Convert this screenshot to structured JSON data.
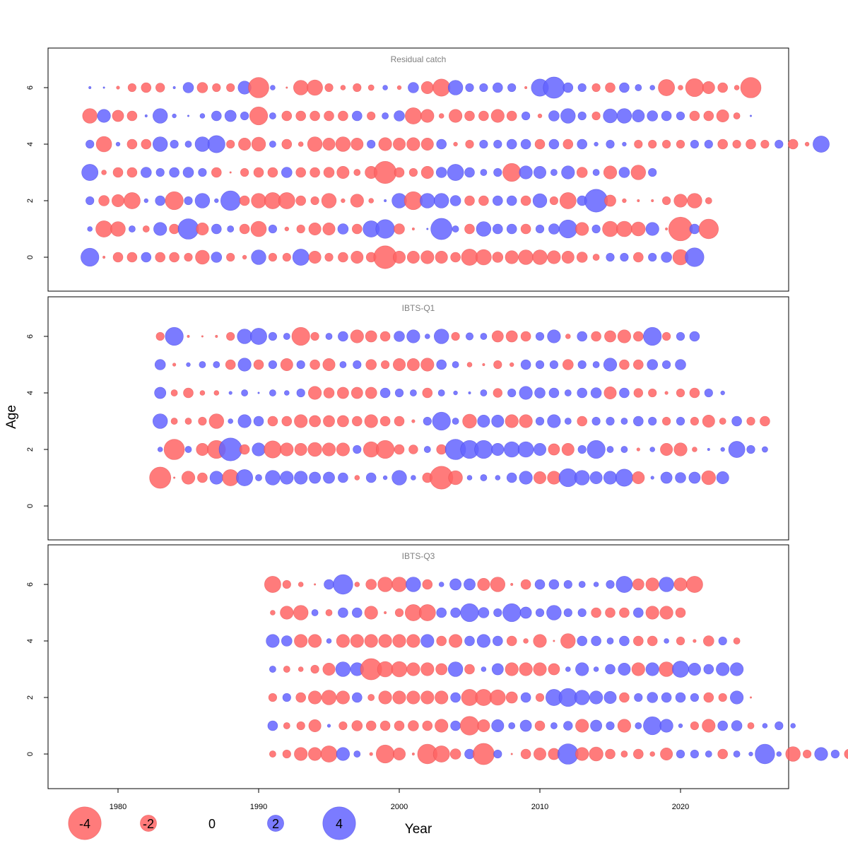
{
  "chart_data": {
    "type": "scatter",
    "subtype": "bubble",
    "xlabel": "Year",
    "ylabel": "Age",
    "x_ticks": [
      1980,
      1990,
      2000,
      2010,
      2020
    ],
    "y_ticks": [
      0,
      2,
      4,
      6
    ],
    "xlim": [
      1975,
      2028
    ],
    "ylim": [
      -1.3,
      7.3
    ],
    "colors": {
      "positive": "#6464ff",
      "negative": "#ff6464",
      "positive_edge": "#3c3cdc",
      "negative_edge": "#e04848"
    },
    "legend": {
      "values": [
        -4,
        -2,
        0,
        2,
        4
      ],
      "labels": [
        "-4",
        "-2",
        "0",
        "2",
        "4"
      ],
      "placement": "bottom"
    },
    "panels": [
      {
        "title": "Residual catch",
        "start_year": 1978,
        "ages": [
          0,
          1,
          2,
          3,
          4,
          5,
          6
        ],
        "residuals": {
          "0": [
            2.2,
            -0.3,
            -1.2,
            -1.2,
            1.2,
            -1.2,
            -1.2,
            -1.0,
            -1.7,
            1.3,
            -1.0,
            -0.5,
            1.8,
            -1.0,
            -1.0,
            2.0,
            -1.5,
            -1.0,
            -1.2,
            -1.5,
            -1.2,
            -2.8,
            -1.5,
            -1.5,
            -1.6,
            -1.5,
            -1.2,
            -2.0,
            -1.9,
            -1.3,
            -1.6,
            -1.8,
            -1.8,
            -1.6,
            -1.5,
            -1.3,
            -0.8,
            1.0,
            1.0,
            -1.2,
            1.0,
            1.3,
            -1.9,
            2.3
          ],
          "1": [
            0.6,
            -2.0,
            -1.8,
            0.8,
            -0.8,
            1.6,
            -1.2,
            2.5,
            -1.5,
            1.2,
            0.8,
            -1.2,
            -1.9,
            1.0,
            -0.5,
            -1.0,
            -1.5,
            -1.5,
            1.3,
            -1.2,
            2.0,
            2.3,
            -1.3,
            -0.3,
            0.2,
            2.6,
            0.8,
            -1.2,
            1.8,
            1.2,
            1.2,
            -1.2,
            1.0,
            1.3,
            2.2,
            -1.6,
            1.0,
            -1.9,
            -1.9,
            -1.7,
            1.6,
            -0.3,
            -2.9,
            1.2,
            -2.4
          ],
          "2": [
            1.0,
            -1.3,
            -1.5,
            -2.0,
            0.5,
            1.2,
            -2.2,
            1.0,
            1.8,
            0.5,
            2.4,
            -1.2,
            -1.8,
            -2.0,
            -2.0,
            -1.2,
            -1.0,
            -1.8,
            -0.5,
            -1.6,
            -0.6,
            0.3,
            1.8,
            -2.2,
            1.8,
            1.8,
            1.3,
            -1.2,
            -1.2,
            1.2,
            1.2,
            -1.2,
            1.7,
            -1.0,
            -2.0,
            1.2,
            2.8,
            -1.4,
            -0.5,
            -0.3,
            -0.3,
            -1.0,
            -1.6,
            -1.8,
            -0.8
          ],
          "3": [
            2.0,
            -0.6,
            -1.2,
            -1.2,
            1.3,
            1.0,
            1.2,
            1.3,
            1.0,
            -1.2,
            -0.2,
            -1.0,
            -1.2,
            -1.2,
            1.3,
            -1.2,
            -1.2,
            -1.3,
            -1.5,
            -0.8,
            -1.5,
            -2.7,
            -1.2,
            -1.0,
            -1.5,
            1.3,
            2.0,
            1.2,
            0.8,
            1.0,
            -2.2,
            1.6,
            1.5,
            0.8,
            1.6,
            -1.3,
            0.8,
            -1.6,
            1.3,
            -1.8,
            1.0
          ],
          "4": [
            1.0,
            -1.9,
            0.5,
            -1.2,
            -1.2,
            1.8,
            1.0,
            0.8,
            1.8,
            2.1,
            -1.0,
            -1.5,
            -1.7,
            0.8,
            -1.2,
            -0.6,
            -1.8,
            -1.5,
            -1.8,
            -1.5,
            1.0,
            -1.6,
            -1.5,
            -1.6,
            -1.5,
            1.2,
            -0.5,
            -1.0,
            1.0,
            1.0,
            1.2,
            1.2,
            -1.2,
            1.2,
            -1.2,
            1.2,
            0.5,
            1.0,
            0.5,
            -1.0,
            -1.0,
            -1.0,
            -1.0,
            1.0,
            1.0,
            -1.2,
            -1.0,
            -1.2,
            -1.0,
            1.0,
            -1.2,
            -0.5,
            2.0
          ],
          "5": [
            -1.8,
            1.6,
            -1.4,
            -1.2,
            0.3,
            1.8,
            0.5,
            0.2,
            0.6,
            1.2,
            1.4,
            1.0,
            -2.2,
            0.8,
            -1.2,
            -1.2,
            -1.2,
            -1.2,
            -1.2,
            1.2,
            -1.0,
            0.8,
            1.3,
            -2.0,
            -1.6,
            -0.6,
            -1.6,
            -1.2,
            -1.2,
            -1.6,
            -1.2,
            1.0,
            -0.5,
            1.3,
            1.8,
            1.0,
            -1.0,
            1.7,
            1.8,
            1.5,
            1.3,
            1.2,
            1.0,
            -1.2,
            -1.2,
            -1.5,
            -0.8,
            0.2
          ],
          "6": [
            0.3,
            0.2,
            -0.4,
            -1.0,
            -1.2,
            -1.1,
            0.3,
            1.3,
            -1.3,
            -1.0,
            -1.0,
            1.6,
            -2.5,
            0.6,
            -0.2,
            -1.8,
            -1.9,
            -1.0,
            -0.6,
            -1.0,
            -0.7,
            0.6,
            -0.5,
            1.3,
            -1.5,
            -2.1,
            1.8,
            1.0,
            1.0,
            1.2,
            1.0,
            -0.3,
            2.1,
            2.6,
            1.2,
            1.0,
            -1.0,
            -1.2,
            1.2,
            0.8,
            0.6,
            -2.0,
            -0.6,
            -2.2,
            -1.5,
            -1.2,
            -0.6,
            -2.5
          ]
        }
      },
      {
        "title": "IBTS-Q1",
        "start_year": 1983,
        "ages": [
          1,
          2,
          3,
          4,
          5,
          6
        ],
        "residuals": {
          "1": [
            -2.6,
            -0.2,
            -1.6,
            -1.2,
            1.6,
            -2.0,
            2.0,
            0.8,
            1.8,
            1.6,
            1.6,
            1.4,
            1.4,
            1.2,
            -0.6,
            1.2,
            0.5,
            1.8,
            0.6,
            -1.2,
            -2.8,
            -1.7,
            0.6,
            0.8,
            0.6,
            1.2,
            1.6,
            -1.5,
            -1.6,
            2.2,
            1.8,
            1.5,
            1.6,
            2.1,
            -1.5,
            0.4,
            1.4,
            1.3,
            1.4,
            -1.7,
            1.5
          ],
          "2": [
            0.6,
            -2.5,
            0.8,
            -1.5,
            -2.2,
            2.8,
            -1.2,
            1.6,
            -2.1,
            -1.6,
            -1.5,
            -1.7,
            -1.6,
            -1.6,
            1.0,
            -1.9,
            -2.2,
            -1.2,
            -1.1,
            0.8,
            -1.2,
            2.5,
            2.2,
            2.2,
            1.5,
            1.9,
            1.9,
            1.5,
            -1.4,
            -1.5,
            1.0,
            2.2,
            0.8,
            0.8,
            -0.4,
            0.6,
            -1.5,
            -1.6,
            -0.6,
            0.3,
            0.5,
            2.0,
            1.0,
            0.7
          ],
          "3": [
            1.8,
            -0.8,
            -0.8,
            -1.0,
            -1.8,
            0.6,
            1.6,
            1.2,
            -1.2,
            -1.2,
            -1.6,
            -1.4,
            -1.4,
            -1.4,
            -1.2,
            -1.6,
            -1.2,
            -1.2,
            -0.4,
            1.0,
            2.2,
            0.8,
            -1.7,
            1.5,
            1.5,
            -1.6,
            -1.6,
            1.0,
            1.6,
            0.8,
            -1.2,
            1.0,
            1.0,
            0.8,
            1.2,
            1.0,
            -1.0,
            1.0,
            -1.0,
            -1.5,
            -0.8,
            1.2,
            -1.0,
            -1.2
          ],
          "4": [
            1.4,
            -0.8,
            -1.2,
            -0.6,
            -0.6,
            0.4,
            0.8,
            0.2,
            0.8,
            0.6,
            1.0,
            -1.6,
            -1.3,
            -1.4,
            -1.4,
            -1.4,
            1.2,
            1.0,
            0.8,
            -1.2,
            0.8,
            0.5,
            0.3,
            0.8,
            -1.1,
            1.0,
            1.6,
            1.3,
            1.2,
            0.8,
            1.2,
            1.3,
            -1.5,
            1.2,
            -1.1,
            -1.0,
            -0.4,
            -1.0,
            -1.2,
            1.0,
            0.5
          ],
          "5": [
            1.3,
            -0.4,
            0.5,
            0.8,
            0.8,
            -1.2,
            1.6,
            -1.2,
            1.0,
            -1.5,
            1.0,
            -1.2,
            -1.5,
            0.8,
            1.0,
            -1.3,
            -1.0,
            -1.5,
            -1.5,
            -1.6,
            1.2,
            0.8,
            -0.6,
            -0.3,
            -1.0,
            -0.5,
            1.2,
            1.0,
            1.0,
            -1.3,
            1.0,
            0.8,
            1.6,
            -1.2,
            -1.2,
            1.3,
            1.0,
            1.3
          ],
          "6": [
            -1.0,
            2.2,
            -0.3,
            -0.2,
            -0.3,
            -1.0,
            1.8,
            2.0,
            1.0,
            0.8,
            -2.2,
            -1.0,
            0.8,
            1.2,
            -1.6,
            -1.4,
            -1.2,
            1.3,
            1.6,
            0.6,
            1.8,
            -1.0,
            0.9,
            0.8,
            -1.4,
            -1.4,
            -1.2,
            1.0,
            1.6,
            -0.6,
            1.2,
            -1.2,
            -1.4,
            -1.6,
            -1.2,
            2.2,
            -1.0,
            1.0,
            1.2
          ]
        }
      },
      {
        "title": "IBTS-Q3",
        "start_year": 1991,
        "ages": [
          0,
          1,
          2,
          3,
          4,
          5,
          6
        ],
        "residuals": {
          "0": [
            -0.8,
            -1.0,
            -1.6,
            -1.6,
            -2.0,
            1.6,
            0.8,
            -0.4,
            -2.2,
            -1.5,
            -0.3,
            -2.4,
            -2.0,
            -1.3,
            1.2,
            -2.6,
            1.0,
            -0.2,
            -1.2,
            -1.5,
            -1.4,
            2.5,
            -1.6,
            -1.7,
            -1.2,
            -0.8,
            -1.2,
            -0.6,
            -1.5,
            1.0,
            1.0,
            0.8,
            -1.2,
            0.8,
            0.5,
            2.4,
            0.6,
            -1.8,
            -1.0,
            1.6,
            1.0,
            -1.2,
            1.4,
            -2.0,
            -1.5
          ],
          "1": [
            1.2,
            -0.8,
            -1.0,
            -1.5,
            0.4,
            -1.0,
            -1.3,
            -1.2,
            -1.2,
            -1.2,
            -1.3,
            -1.2,
            -1.6,
            1.2,
            -2.3,
            -1.5,
            1.5,
            0.8,
            1.4,
            -1.2,
            0.8,
            1.1,
            -1.6,
            1.4,
            1.0,
            -1.6,
            0.8,
            2.2,
            1.6,
            0.5,
            -1.0,
            -1.6,
            1.2,
            1.3,
            -0.8,
            0.6,
            1.0,
            0.6
          ],
          "2": [
            -1.0,
            1.0,
            -1.2,
            -1.6,
            -1.8,
            -1.6,
            1.2,
            -0.8,
            -1.6,
            -1.6,
            -1.6,
            -1.6,
            -1.6,
            1.2,
            -2.0,
            -2.0,
            -1.9,
            -1.4,
            1.2,
            -1.0,
            2.0,
            2.2,
            1.8,
            1.6,
            1.5,
            -1.2,
            1.0,
            1.3,
            1.2,
            1.2,
            1.0,
            -1.2,
            -1.0,
            1.6,
            -0.2
          ],
          "3": [
            0.8,
            -0.8,
            -0.6,
            -1.0,
            -1.5,
            1.8,
            1.6,
            -2.6,
            -1.9,
            -1.9,
            -1.6,
            -1.6,
            -1.4,
            1.8,
            -1.2,
            0.6,
            1.4,
            -1.6,
            -1.6,
            -1.6,
            -1.4,
            0.6,
            1.6,
            0.6,
            1.2,
            1.5,
            -1.6,
            1.6,
            -1.8,
            2.0,
            1.5,
            1.2,
            1.6,
            1.6
          ],
          "4": [
            1.6,
            1.3,
            -1.6,
            -1.6,
            0.6,
            -1.6,
            -1.6,
            -1.6,
            -1.6,
            -1.6,
            -1.6,
            1.6,
            -1.2,
            -1.6,
            1.2,
            1.6,
            1.2,
            -1.2,
            -0.6,
            -1.6,
            -0.2,
            -1.8,
            1.2,
            1.2,
            0.8,
            1.2,
            -1.2,
            -1.2,
            0.6,
            -1.0,
            -0.4,
            -1.3,
            1.0,
            -0.8
          ],
          "5": [
            -0.6,
            -1.6,
            -1.8,
            0.8,
            -0.8,
            1.2,
            1.2,
            -1.6,
            -0.3,
            -1.0,
            -2.0,
            -2.0,
            1.2,
            1.2,
            2.2,
            1.3,
            1.0,
            2.2,
            1.4,
            1.0,
            1.8,
            1.0,
            1.0,
            -1.2,
            -1.2,
            -1.2,
            1.2,
            -1.6,
            -1.6,
            -1.2
          ],
          "6": [
            -2.0,
            -1.0,
            -0.6,
            -0.2,
            1.2,
            2.4,
            -0.6,
            -1.3,
            -1.8,
            -1.8,
            1.8,
            -1.2,
            0.6,
            1.4,
            1.4,
            -1.5,
            -1.8,
            -0.3,
            -1.2,
            1.2,
            1.2,
            1.0,
            0.8,
            0.6,
            1.0,
            2.0,
            -1.4,
            -1.6,
            1.8,
            -1.6,
            -2.0
          ]
        }
      }
    ]
  }
}
